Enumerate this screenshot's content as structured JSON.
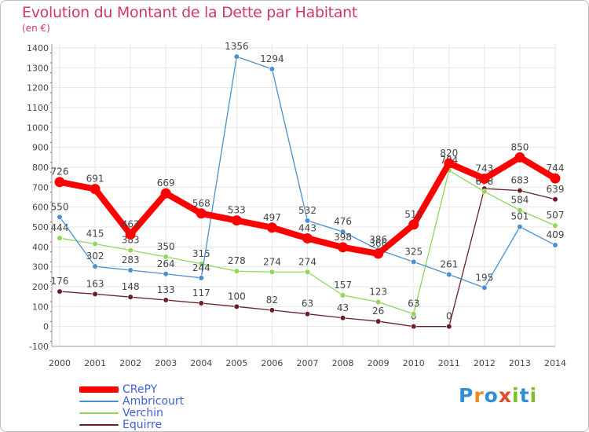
{
  "header": {
    "title": "Evolution du Montant de la Dette par Habitant",
    "subtitle": "(en €)"
  },
  "logo": {
    "text": "Proxiti",
    "letters": [
      {
        "ch": "P",
        "color": "#2f8fd6"
      },
      {
        "ch": "r",
        "color": "#e98a1e"
      },
      {
        "ch": "o",
        "color": "#2f8fd6"
      },
      {
        "ch": "x",
        "color": "#e14b2b"
      },
      {
        "ch": "i",
        "color": "#7fbf2b"
      },
      {
        "ch": "t",
        "color": "#2f8fd6"
      },
      {
        "ch": "i",
        "color": "#7fbf2b"
      }
    ]
  },
  "chart_data": {
    "type": "line",
    "title": "Evolution du Montant de la Dette par Habitant",
    "subtitle": "(en €)",
    "xlabel": "",
    "ylabel": "",
    "categories": [
      "2000",
      "2001",
      "2002",
      "2003",
      "2004",
      "2005",
      "2006",
      "2007",
      "2008",
      "2009",
      "2010",
      "2011",
      "2012",
      "2013",
      "2014"
    ],
    "ylim": [
      -100,
      1400
    ],
    "yticks": [
      -100,
      0,
      100,
      200,
      300,
      400,
      500,
      600,
      700,
      800,
      900,
      1000,
      1100,
      1200,
      1300,
      1400
    ],
    "grid": true,
    "legend_position": "bottom-left",
    "series": [
      {
        "name": "CRePY",
        "color": "#ff0000",
        "values": [
          726,
          691,
          463,
          669,
          568,
          533,
          497,
          443,
          398,
          366,
          512,
          820,
          743,
          850,
          744
        ]
      },
      {
        "name": "Ambricourt",
        "color": "#4a8fd0",
        "values": [
          550,
          302,
          283,
          264,
          244,
          1356,
          1294,
          532,
          476,
          386,
          325,
          261,
          195,
          501,
          409
        ]
      },
      {
        "name": "Verchin",
        "color": "#8fd65a",
        "values": [
          444,
          415,
          383,
          350,
          315,
          278,
          274,
          274,
          157,
          123,
          63,
          784,
          678,
          584,
          507
        ]
      },
      {
        "name": "Equirre",
        "color": "#6b1f24",
        "values": [
          176,
          163,
          148,
          133,
          117,
          100,
          82,
          63,
          43,
          26,
          0,
          0,
          693,
          683,
          639
        ]
      }
    ]
  }
}
